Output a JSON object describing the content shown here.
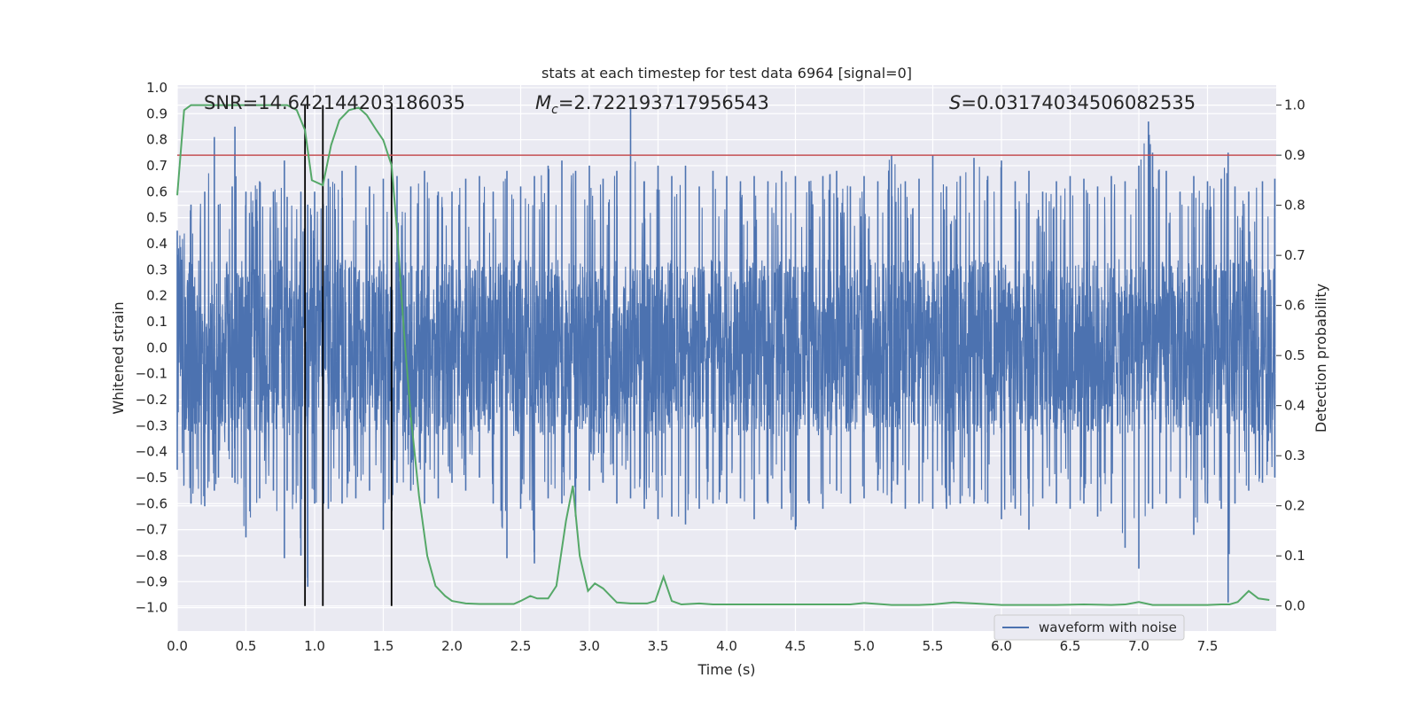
{
  "chart_data": {
    "type": "line",
    "title": "stats at each timestep for test data 6964 [signal=0]",
    "xlabel": "Time (s)",
    "ylabel_left": "Whitened strain",
    "ylabel_right": "Detection probability",
    "xlim": [
      0.0,
      8.0
    ],
    "ylim_left": [
      -1.09,
      1.01
    ],
    "ylim_right": [
      -0.05,
      1.04
    ],
    "x_ticks": [
      "0.0",
      "0.5",
      "1.0",
      "1.5",
      "2.0",
      "2.5",
      "3.0",
      "3.5",
      "4.0",
      "4.5",
      "5.0",
      "5.5",
      "6.0",
      "6.5",
      "7.0",
      "7.5"
    ],
    "x_tick_values": [
      0.0,
      0.5,
      1.0,
      1.5,
      2.0,
      2.5,
      3.0,
      3.5,
      4.0,
      4.5,
      5.0,
      5.5,
      6.0,
      6.5,
      7.0,
      7.5
    ],
    "y_left_ticks": [
      "1.0",
      "0.9",
      "0.8",
      "0.7",
      "0.6",
      "0.5",
      "0.4",
      "0.3",
      "0.2",
      "0.1",
      "0.0",
      "−0.1",
      "−0.2",
      "−0.3",
      "−0.4",
      "−0.5",
      "−0.6",
      "−0.7",
      "−0.8",
      "−0.9",
      "−1.0"
    ],
    "y_left_tick_values": [
      1.0,
      0.9,
      0.8,
      0.7,
      0.6,
      0.5,
      0.4,
      0.3,
      0.2,
      0.1,
      0.0,
      -0.1,
      -0.2,
      -0.3,
      -0.4,
      -0.5,
      -0.6,
      -0.7,
      -0.8,
      -0.9,
      -1.0
    ],
    "y_right_ticks": [
      "1.0",
      "0.9",
      "0.8",
      "0.7",
      "0.6",
      "0.5",
      "0.4",
      "0.3",
      "0.2",
      "0.1",
      "0.0"
    ],
    "y_right_tick_values": [
      1.0,
      0.9,
      0.8,
      0.7,
      0.6,
      0.5,
      0.4,
      0.3,
      0.2,
      0.1,
      0.0
    ],
    "stats": {
      "snr_label": "SNR=14.642144203186035",
      "mc_symbol": "M",
      "mc_subscript": "c",
      "mc_value": "=2.722193717956543",
      "s_symbol": "S",
      "s_value": "=0.03174034506082535"
    },
    "threshold": {
      "value": 0.9,
      "axis": "right",
      "color": "#c44e52"
    },
    "vertical_lines": {
      "x": [
        0.93,
        1.06,
        1.56
      ],
      "color": "#000000"
    },
    "series": [
      {
        "name": "waveform with noise",
        "axis": "left",
        "color": "#4c72b0",
        "description": "dense whitened strain noise; envelope peaks at each time",
        "x": [
          0.0,
          0.1,
          0.2,
          0.27,
          0.3,
          0.4,
          0.42,
          0.5,
          0.6,
          0.7,
          0.78,
          0.8,
          0.9,
          0.95,
          1.0,
          1.1,
          1.2,
          1.3,
          1.4,
          1.5,
          1.56,
          1.6,
          1.7,
          1.8,
          1.9,
          2.0,
          2.1,
          2.2,
          2.3,
          2.4,
          2.5,
          2.6,
          2.7,
          2.8,
          2.9,
          3.0,
          3.1,
          3.2,
          3.3,
          3.4,
          3.5,
          3.6,
          3.7,
          3.8,
          3.9,
          4.0,
          4.1,
          4.2,
          4.3,
          4.4,
          4.5,
          4.6,
          4.7,
          4.8,
          4.9,
          5.0,
          5.1,
          5.2,
          5.3,
          5.4,
          5.5,
          5.6,
          5.7,
          5.8,
          5.9,
          6.0,
          6.1,
          6.2,
          6.3,
          6.4,
          6.5,
          6.6,
          6.7,
          6.8,
          6.9,
          7.0,
          7.07,
          7.1,
          7.2,
          7.3,
          7.4,
          7.5,
          7.6,
          7.65,
          7.7,
          7.8,
          7.9,
          7.99
        ],
        "y_max": [
          0.45,
          0.55,
          0.6,
          0.81,
          0.55,
          0.62,
          0.85,
          0.6,
          0.64,
          0.6,
          0.72,
          0.58,
          0.6,
          0.55,
          0.6,
          0.65,
          0.68,
          0.7,
          0.62,
          0.65,
          0.68,
          0.66,
          0.62,
          0.68,
          0.6,
          0.6,
          0.65,
          0.66,
          0.6,
          0.68,
          0.62,
          0.66,
          0.7,
          0.72,
          0.68,
          0.7,
          0.65,
          0.68,
          0.92,
          0.64,
          0.7,
          0.66,
          0.7,
          0.62,
          0.68,
          0.66,
          0.64,
          0.66,
          0.64,
          0.68,
          0.66,
          0.64,
          0.66,
          0.68,
          0.62,
          0.66,
          0.64,
          0.74,
          0.64,
          0.65,
          0.74,
          0.62,
          0.66,
          0.73,
          0.66,
          0.72,
          0.64,
          0.68,
          0.6,
          0.64,
          0.66,
          0.65,
          0.62,
          0.66,
          0.64,
          0.7,
          0.87,
          0.75,
          0.68,
          0.6,
          0.66,
          0.64,
          0.65,
          0.75,
          0.62,
          0.6,
          0.64,
          0.65
        ],
        "y_min": [
          -0.47,
          -0.6,
          -0.61,
          -0.55,
          -0.5,
          -0.5,
          -0.52,
          -0.73,
          -0.58,
          -0.55,
          -0.81,
          -0.55,
          -0.8,
          -0.92,
          -0.6,
          -0.62,
          -0.6,
          -0.58,
          -0.55,
          -0.7,
          -0.68,
          -0.52,
          -0.55,
          -0.6,
          -0.58,
          -0.52,
          -0.55,
          -0.5,
          -0.6,
          -0.81,
          -0.62,
          -0.83,
          -0.58,
          -0.6,
          -0.65,
          -0.55,
          -0.52,
          -0.6,
          -0.58,
          -0.62,
          -0.66,
          -0.65,
          -0.68,
          -0.62,
          -0.6,
          -0.6,
          -0.58,
          -0.66,
          -0.6,
          -0.62,
          -0.7,
          -0.6,
          -0.62,
          -0.55,
          -0.6,
          -0.58,
          -0.55,
          -0.6,
          -0.62,
          -0.6,
          -0.62,
          -0.62,
          -0.6,
          -0.6,
          -0.6,
          -0.66,
          -0.62,
          -0.7,
          -0.58,
          -0.6,
          -0.62,
          -0.6,
          -0.65,
          -0.6,
          -0.77,
          -0.85,
          -0.6,
          -0.62,
          -0.6,
          -0.58,
          -0.72,
          -0.6,
          -0.62,
          -0.98,
          -0.6,
          -0.55,
          -0.52,
          -0.5
        ]
      },
      {
        "name": "detection probability",
        "axis": "right",
        "color": "#55a868",
        "x": [
          0.0,
          0.05,
          0.1,
          0.2,
          0.3,
          0.4,
          0.5,
          0.6,
          0.7,
          0.8,
          0.87,
          0.93,
          0.98,
          1.06,
          1.12,
          1.18,
          1.25,
          1.32,
          1.38,
          1.45,
          1.5,
          1.56,
          1.6,
          1.65,
          1.7,
          1.76,
          1.82,
          1.88,
          1.95,
          2.0,
          2.1,
          2.2,
          2.3,
          2.4,
          2.45,
          2.5,
          2.57,
          2.62,
          2.7,
          2.76,
          2.83,
          2.88,
          2.93,
          2.99,
          3.04,
          3.1,
          3.2,
          3.3,
          3.42,
          3.48,
          3.54,
          3.6,
          3.67,
          3.8,
          3.9,
          4.0,
          4.2,
          4.5,
          4.8,
          4.9,
          5.0,
          5.2,
          5.4,
          5.5,
          5.65,
          5.8,
          6.0,
          6.2,
          6.4,
          6.6,
          6.8,
          6.9,
          7.0,
          7.1,
          7.3,
          7.5,
          7.6,
          7.66,
          7.72,
          7.8,
          7.87,
          7.95
        ],
        "y": [
          0.82,
          0.99,
          1.0,
          1.0,
          1.0,
          1.0,
          1.0,
          1.0,
          1.0,
          1.0,
          0.99,
          0.95,
          0.85,
          0.84,
          0.92,
          0.97,
          0.99,
          0.995,
          0.98,
          0.95,
          0.93,
          0.88,
          0.75,
          0.55,
          0.38,
          0.22,
          0.1,
          0.04,
          0.02,
          0.01,
          0.005,
          0.004,
          0.004,
          0.004,
          0.004,
          0.01,
          0.02,
          0.015,
          0.015,
          0.04,
          0.17,
          0.24,
          0.1,
          0.03,
          0.045,
          0.035,
          0.007,
          0.005,
          0.005,
          0.01,
          0.058,
          0.01,
          0.003,
          0.005,
          0.003,
          0.003,
          0.003,
          0.003,
          0.003,
          0.003,
          0.006,
          0.002,
          0.002,
          0.003,
          0.007,
          0.005,
          0.002,
          0.002,
          0.002,
          0.003,
          0.002,
          0.003,
          0.008,
          0.002,
          0.002,
          0.002,
          0.003,
          0.003,
          0.008,
          0.03,
          0.015,
          0.012
        ]
      }
    ],
    "legend": {
      "entries": [
        "waveform with noise"
      ],
      "placement": "lower-right"
    },
    "grid": true
  }
}
